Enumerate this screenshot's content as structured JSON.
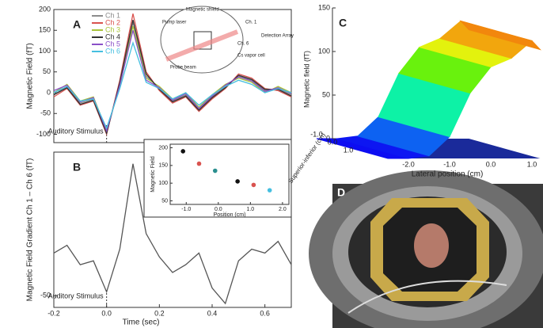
{
  "chart_data": [
    {
      "type": "line",
      "label": "A",
      "ylabel": "Magnetic Field (fT)",
      "annotation": "Auditory Stimulus",
      "x": [
        -0.2,
        -0.15,
        -0.1,
        -0.05,
        0.0,
        0.05,
        0.1,
        0.15,
        0.2,
        0.25,
        0.3,
        0.35,
        0.4,
        0.45,
        0.5,
        0.55,
        0.6,
        0.65,
        0.7
      ],
      "xlim": [
        -0.2,
        0.7
      ],
      "ylim": [
        -120,
        200
      ],
      "yticks": [
        -100,
        -50,
        0,
        50,
        100,
        150,
        200
      ],
      "series": [
        {
          "name": "Ch 1",
          "color": "#8c8c8c",
          "values": [
            -5,
            15,
            -25,
            -15,
            -95,
            20,
            170,
            40,
            10,
            -20,
            -5,
            -40,
            -10,
            15,
            40,
            30,
            5,
            10,
            -5
          ]
        },
        {
          "name": "Ch 2",
          "color": "#d9534f",
          "values": [
            -10,
            10,
            -30,
            -20,
            -100,
            30,
            190,
            50,
            5,
            -25,
            -10,
            -45,
            -15,
            10,
            45,
            35,
            10,
            5,
            -10
          ]
        },
        {
          "name": "Ch 3",
          "color": "#a8c43a",
          "values": [
            0,
            20,
            -20,
            -10,
            -90,
            15,
            160,
            35,
            15,
            -15,
            0,
            -35,
            -5,
            20,
            35,
            25,
            0,
            15,
            0
          ]
        },
        {
          "name": "Ch 4",
          "color": "#333333",
          "values": [
            -5,
            12,
            -28,
            -18,
            -98,
            25,
            175,
            45,
            8,
            -22,
            -8,
            -42,
            -12,
            12,
            42,
            32,
            8,
            8,
            -8
          ]
        },
        {
          "name": "Ch 5",
          "color": "#8a4fc8",
          "values": [
            5,
            18,
            -22,
            -12,
            -92,
            18,
            150,
            30,
            12,
            -18,
            -2,
            -38,
            -8,
            18,
            38,
            28,
            3,
            12,
            -2
          ]
        },
        {
          "name": "Ch 6",
          "color": "#45bfe0",
          "values": [
            0,
            15,
            -20,
            -15,
            -85,
            10,
            120,
            25,
            10,
            -15,
            0,
            -30,
            -5,
            15,
            30,
            20,
            0,
            10,
            0
          ]
        }
      ],
      "inset": {
        "labels": [
          "Magnetic shield",
          "Pump laser",
          "Probe beam",
          "Detection Array",
          "Ch. 1",
          "Ch. 6",
          "Cs vapor cell"
        ]
      }
    },
    {
      "type": "line",
      "label": "B",
      "ylabel": "Magnetic Field Gradient Ch 1 – Ch 6 (fT)",
      "xlabel": "Time (sec)",
      "annotation": "Auditory Stimulus",
      "x": [
        -0.2,
        -0.15,
        -0.1,
        -0.05,
        0.0,
        0.05,
        0.1,
        0.15,
        0.2,
        0.25,
        0.3,
        0.35,
        0.4,
        0.45,
        0.5,
        0.55,
        0.6,
        0.65,
        0.7
      ],
      "xlim": [
        -0.2,
        0.7
      ],
      "xticks": [
        -0.2,
        {
          "value": 0,
          "label": "0.0"
        },
        0.2,
        0.4,
        0.6
      ],
      "ylim": [
        -65,
        135
      ],
      "yticks": [
        -50
      ],
      "series": [
        {
          "name": "Ch 1 – Ch 6",
          "color": "#555555",
          "values": [
            5,
            15,
            -10,
            -5,
            -45,
            10,
            120,
            30,
            0,
            -20,
            -10,
            5,
            -40,
            -60,
            -5,
            10,
            5,
            20,
            -10
          ]
        }
      ]
    },
    {
      "type": "scatter",
      "xlabel": "Position (cm)",
      "ylabel": "Magnetic Field",
      "x": [
        -1.1,
        -0.6,
        -0.1,
        0.6,
        1.1,
        1.6
      ],
      "values": [
        190,
        155,
        135,
        105,
        95,
        80
      ],
      "colors": [
        "#111111",
        "#d9534f",
        "#2a8f8f",
        "#111111",
        "#d9534f",
        "#45bfe0"
      ],
      "xlim": [
        -1.5,
        2.2
      ],
      "xticks": [
        {
          "value": -1,
          "label": "-1.0"
        },
        {
          "value": 0,
          "label": "0.0"
        },
        {
          "value": 1,
          "label": "1.0"
        },
        {
          "value": 2,
          "label": "2.0"
        }
      ],
      "ylim": [
        40,
        210
      ],
      "yticks": [
        50,
        100,
        150,
        200
      ]
    },
    {
      "type": "surface",
      "label": "C",
      "zlabel": "Magnetic field (fT)",
      "xlabel": "Lateral position (cm)",
      "ylabel": "Superior-inferior (cm)",
      "x": [
        -2.5,
        -2.0,
        -1.5,
        -1.0,
        -0.5,
        0.0,
        0.5,
        1.0,
        1.2
      ],
      "values": [
        0,
        0,
        3,
        25,
        75,
        105,
        115,
        135,
        125
      ],
      "xticks": [
        {
          "value": -2,
          "label": "-2.0"
        },
        {
          "value": -1,
          "label": "-1.0"
        },
        {
          "value": 0,
          "label": "0.0"
        },
        {
          "value": 1,
          "label": "1.0"
        }
      ],
      "yticks": [
        {
          "value": -1,
          "label": "-1.0"
        },
        {
          "value": 0,
          "label": "0.0"
        },
        {
          "value": 1,
          "label": "1.0"
        }
      ],
      "zlim": [
        0,
        150
      ],
      "zticks": [
        0,
        50,
        100,
        150
      ]
    },
    {
      "type": "photo",
      "label": "D"
    }
  ]
}
